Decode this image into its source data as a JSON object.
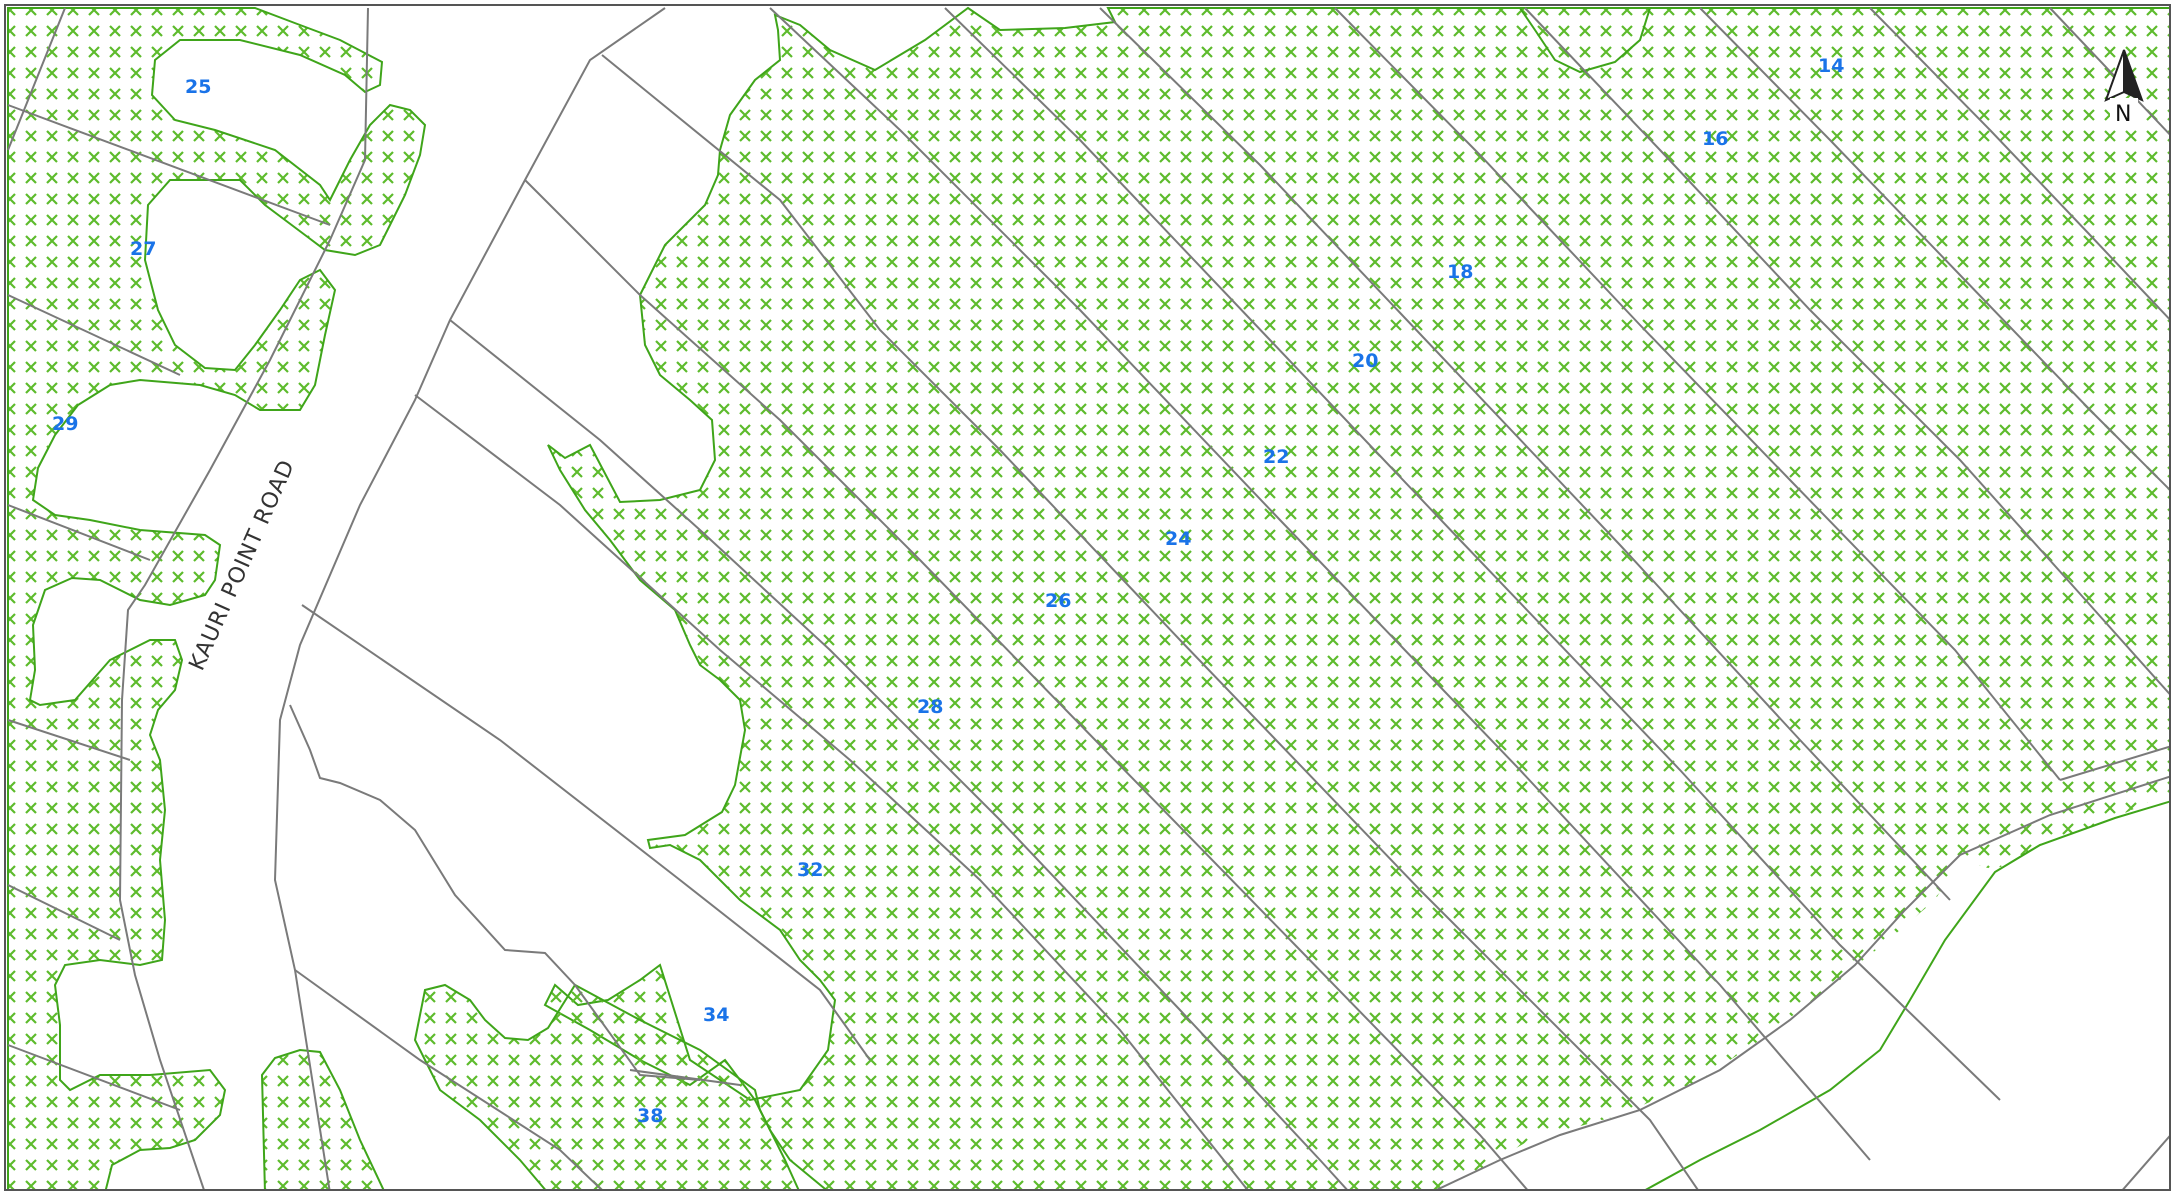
{
  "map": {
    "road_name": "KAURI POINT ROAD",
    "north_label": "N",
    "colors": {
      "hatch": "#5dbb2c",
      "hatch_outline": "#3fa51a",
      "boundary": "#7a7a7a",
      "label": "#1a73e8",
      "frame": "#555555",
      "road_text": "#333333"
    },
    "parcel_labels": [
      "25",
      "27",
      "29",
      "14",
      "16",
      "18",
      "20",
      "22",
      "24",
      "26",
      "28",
      "32",
      "34",
      "38"
    ]
  }
}
